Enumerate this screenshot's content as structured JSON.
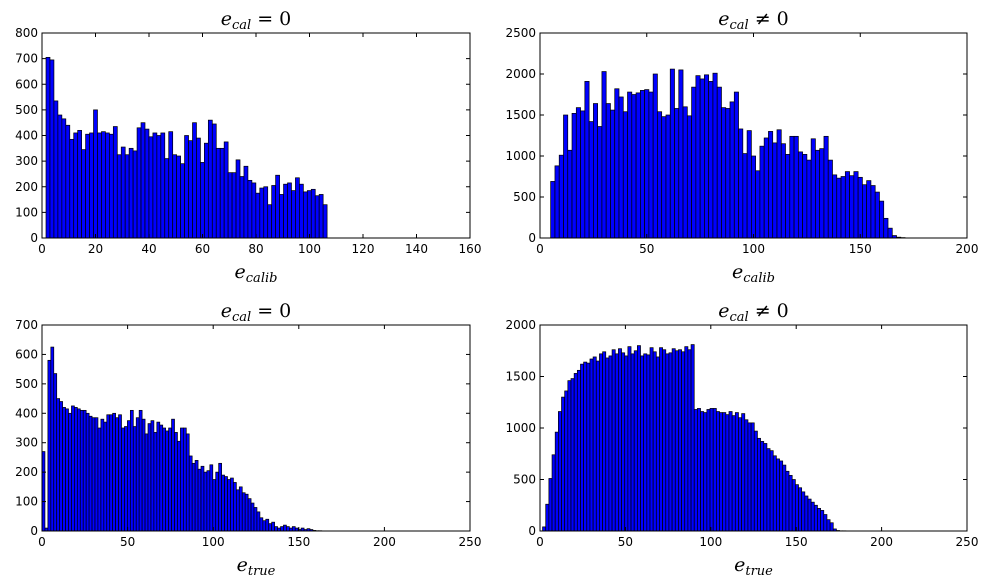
{
  "colors": {
    "bar_fill": "#0000ff",
    "bar_edge": "#000000"
  },
  "chart_data": [
    {
      "type": "bar",
      "title": {
        "base": "e",
        "sub": "cal",
        "op": "=",
        "rhs": "0"
      },
      "xlabel": {
        "base": "e",
        "sub": "calib"
      },
      "xlim": [
        0,
        160
      ],
      "ylim": [
        0,
        800
      ],
      "xticks": [
        "0",
        "20",
        "40",
        "60",
        "80",
        "100",
        "120",
        "140",
        "160"
      ],
      "yticks": [
        "0",
        "100",
        "200",
        "300",
        "400",
        "500",
        "600",
        "700",
        "800"
      ],
      "bin_start": 1.5,
      "bin_width": 1.48,
      "values": [
        705,
        695,
        535,
        480,
        465,
        440,
        385,
        410,
        420,
        345,
        405,
        410,
        500,
        410,
        415,
        410,
        405,
        435,
        325,
        355,
        325,
        350,
        340,
        430,
        450,
        425,
        395,
        410,
        400,
        410,
        310,
        415,
        325,
        320,
        290,
        400,
        380,
        450,
        390,
        295,
        370,
        460,
        445,
        350,
        350,
        375,
        255,
        255,
        305,
        240,
        280,
        225,
        215,
        175,
        195,
        200,
        130,
        205,
        245,
        170,
        210,
        215,
        185,
        235,
        210,
        180,
        185,
        190,
        165,
        170,
        130
      ]
    },
    {
      "type": "bar",
      "title": {
        "base": "e",
        "sub": "cal",
        "op": "≠",
        "rhs": "0"
      },
      "xlabel": {
        "base": "e",
        "sub": "calib"
      },
      "xlim": [
        0,
        200
      ],
      "ylim": [
        0,
        2500
      ],
      "xticks": [
        "0",
        "50",
        "100",
        "150",
        "200"
      ],
      "yticks": [
        "0",
        "500",
        "1000",
        "1500",
        "2000",
        "2500"
      ],
      "bin_start": 5,
      "bin_width": 2,
      "values": [
        690,
        880,
        1010,
        1500,
        1070,
        1520,
        1590,
        1550,
        1910,
        1420,
        1640,
        1360,
        2030,
        1640,
        1560,
        1820,
        1720,
        1540,
        1780,
        1750,
        1770,
        1800,
        1810,
        1780,
        2000,
        1540,
        1480,
        1500,
        2060,
        1580,
        2050,
        1600,
        1490,
        1840,
        1980,
        1940,
        1990,
        1910,
        2010,
        1840,
        1590,
        1580,
        1660,
        1780,
        1330,
        1030,
        1310,
        1000,
        820,
        1120,
        1220,
        1300,
        1160,
        1320,
        1150,
        1020,
        1240,
        1240,
        1050,
        1020,
        950,
        1210,
        1070,
        1090,
        1240,
        950,
        770,
        730,
        750,
        810,
        760,
        810,
        740,
        650,
        700,
        640,
        560,
        450,
        240,
        120,
        30,
        10,
        5
      ]
    },
    {
      "type": "bar",
      "title": {
        "base": "e",
        "sub": "cal",
        "op": "=",
        "rhs": "0"
      },
      "xlabel": {
        "base": "e",
        "sub": "true"
      },
      "xlim": [
        0,
        250
      ],
      "ylim": [
        0,
        700
      ],
      "xticks": [
        "0",
        "50",
        "100",
        "150",
        "200",
        "250"
      ],
      "yticks": [
        "0",
        "100",
        "200",
        "300",
        "400",
        "500",
        "600",
        "700"
      ],
      "bin_start": 0,
      "bin_width": 1.72,
      "values": [
        270,
        10,
        580,
        625,
        535,
        450,
        440,
        420,
        415,
        400,
        425,
        420,
        415,
        410,
        410,
        400,
        390,
        385,
        385,
        350,
        380,
        370,
        395,
        395,
        400,
        385,
        395,
        350,
        355,
        375,
        410,
        355,
        385,
        410,
        380,
        330,
        365,
        375,
        335,
        370,
        360,
        350,
        340,
        350,
        380,
        335,
        305,
        350,
        350,
        330,
        255,
        230,
        240,
        210,
        220,
        200,
        205,
        225,
        175,
        200,
        230,
        190,
        185,
        175,
        180,
        165,
        140,
        150,
        130,
        125,
        110,
        95,
        80,
        65,
        45,
        35,
        40,
        25,
        30,
        15,
        10,
        15,
        20,
        15,
        10,
        15,
        10,
        5,
        10,
        5,
        8,
        5,
        2,
        1,
        1
      ]
    },
    {
      "type": "bar",
      "title": {
        "base": "e",
        "sub": "cal",
        "op": "≠",
        "rhs": "0"
      },
      "xlabel": {
        "base": "e",
        "sub": "true"
      },
      "xlim": [
        0,
        250
      ],
      "ylim": [
        0,
        2000
      ],
      "xticks": [
        "0",
        "50",
        "100",
        "150",
        "200",
        "250"
      ],
      "yticks": [
        "0",
        "500",
        "1000",
        "1500",
        "2000"
      ],
      "bin_start": 1.5,
      "bin_width": 1.85,
      "values": [
        40,
        260,
        510,
        740,
        960,
        1160,
        1300,
        1360,
        1460,
        1480,
        1530,
        1560,
        1620,
        1640,
        1630,
        1670,
        1690,
        1650,
        1720,
        1740,
        1680,
        1700,
        1760,
        1720,
        1770,
        1730,
        1700,
        1790,
        1720,
        1750,
        1800,
        1700,
        1720,
        1710,
        1780,
        1740,
        1690,
        1780,
        1760,
        1720,
        1730,
        1770,
        1750,
        1760,
        1740,
        1790,
        1760,
        1810,
        1180,
        1190,
        1160,
        1150,
        1180,
        1190,
        1190,
        1160,
        1150,
        1150,
        1130,
        1160,
        1120,
        1150,
        1100,
        1140,
        1080,
        1050,
        1050,
        970,
        900,
        870,
        850,
        800,
        780,
        730,
        700,
        680,
        640,
        580,
        540,
        500,
        450,
        420,
        380,
        340,
        310,
        280,
        250,
        220,
        200,
        160,
        110,
        80,
        20,
        5,
        2,
        2,
        1,
        0,
        0,
        0
      ]
    }
  ]
}
